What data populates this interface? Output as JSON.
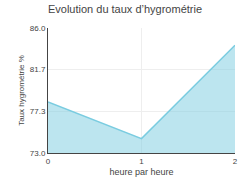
{
  "chart_data": {
    "type": "area",
    "title": "Evolution du taux d’hygrométrie",
    "x_label": "heure par heure",
    "y_label": "Taux hygrométrie %",
    "x": [
      0,
      1,
      2
    ],
    "values": [
      78.3,
      74.5,
      84.2
    ],
    "color": "#7acce0",
    "xlim": [
      0,
      2
    ],
    "xticks": [
      0,
      1,
      2
    ],
    "ylim": [
      73,
      86
    ],
    "yticks": [
      {
        "value": 73,
        "label": "73.0"
      },
      77.3,
      81.7,
      {
        "value": 86,
        "label": "86.0"
      }
    ],
    "grid": true
  }
}
